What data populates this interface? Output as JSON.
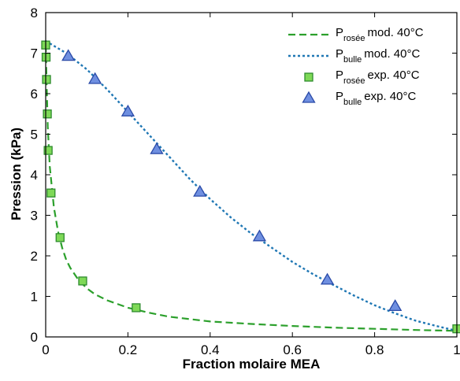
{
  "chart_data": {
    "type": "scatter",
    "title": "",
    "xlabel": "Fraction molaire MEA",
    "ylabel": "Pression (kPa)",
    "xlim": [
      0,
      1
    ],
    "ylim": [
      0,
      8
    ],
    "xticks": [
      0,
      0.2,
      0.4,
      0.6,
      0.8,
      1
    ],
    "xtick_labels": [
      "0",
      "0.2",
      "0.4",
      "0.6",
      "0.8",
      "1"
    ],
    "yticks": [
      0,
      1,
      2,
      3,
      4,
      5,
      6,
      7,
      8
    ],
    "ytick_labels": [
      "0",
      "1",
      "2",
      "3",
      "4",
      "5",
      "6",
      "7",
      "8"
    ],
    "grid": false,
    "legend_position": "top-right",
    "series": [
      {
        "id": "dew_model",
        "kind": "line",
        "style": "dashed",
        "color": "#2ca02c",
        "legend": {
          "main": "P",
          "sub": "rosée",
          "rest": "mod. 40°C"
        },
        "x": [
          0,
          0.005,
          0.01,
          0.02,
          0.03,
          0.04,
          0.05,
          0.06,
          0.08,
          0.1,
          0.12,
          0.15,
          0.2,
          0.25,
          0.3,
          0.4,
          0.5,
          0.6,
          0.7,
          0.8,
          0.9,
          1.0
        ],
        "y": [
          7.2,
          5.2,
          4.2,
          3.2,
          2.6,
          2.2,
          1.9,
          1.7,
          1.4,
          1.2,
          1.05,
          0.9,
          0.72,
          0.6,
          0.5,
          0.38,
          0.32,
          0.27,
          0.23,
          0.2,
          0.17,
          0.15
        ]
      },
      {
        "id": "bubble_model",
        "kind": "line",
        "style": "dotted",
        "color": "#1f77b4",
        "legend": {
          "main": "P",
          "sub": "bulle",
          "rest": "mod. 40°C"
        },
        "x": [
          0,
          0.05,
          0.1,
          0.15,
          0.2,
          0.25,
          0.3,
          0.35,
          0.4,
          0.45,
          0.5,
          0.55,
          0.6,
          0.65,
          0.7,
          0.75,
          0.8,
          0.85,
          0.9,
          0.95,
          1.0
        ],
        "y": [
          7.3,
          7.0,
          6.6,
          6.1,
          5.55,
          5.0,
          4.45,
          3.9,
          3.4,
          2.95,
          2.55,
          2.2,
          1.85,
          1.55,
          1.28,
          1.02,
          0.78,
          0.58,
          0.4,
          0.27,
          0.15
        ]
      },
      {
        "id": "dew_exp",
        "kind": "scatter",
        "marker": "square",
        "color": "#7ed957",
        "edge": "#2e8b2e",
        "legend": {
          "main": "P",
          "sub": "rosée",
          "rest": "exp. 40°C"
        },
        "x": [
          0,
          0.001,
          0.002,
          0.004,
          0.006,
          0.013,
          0.035,
          0.09,
          0.22,
          1.0
        ],
        "y": [
          7.2,
          6.9,
          6.35,
          5.5,
          4.6,
          3.55,
          2.45,
          1.38,
          0.72,
          0.2
        ]
      },
      {
        "id": "bubble_exp",
        "kind": "scatter",
        "marker": "triangle",
        "color": "#6f8fe0",
        "edge": "#2a4aa8",
        "legend": {
          "main": "P",
          "sub": "bulle",
          "rest": "exp. 40°C"
        },
        "x": [
          0.055,
          0.12,
          0.2,
          0.27,
          0.375,
          0.52,
          0.685,
          0.85
        ],
        "y": [
          6.92,
          6.35,
          5.55,
          4.62,
          3.57,
          2.47,
          1.4,
          0.75
        ]
      }
    ]
  }
}
